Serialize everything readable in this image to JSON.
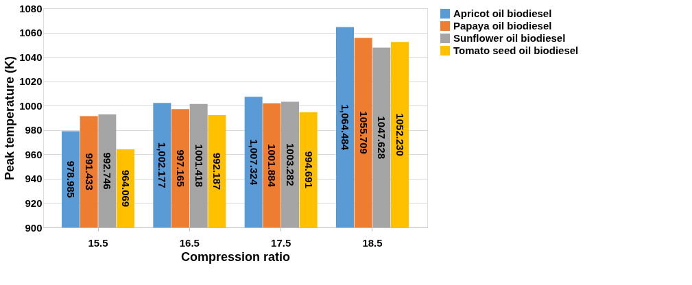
{
  "chart_data": {
    "type": "bar",
    "xlabel": "Compression  ratio",
    "ylabel": "Peak temperature (K)",
    "categories": [
      "15.5",
      "16.5",
      "17.5",
      "18.5"
    ],
    "series": [
      {
        "name": "Apricot oil  biodiesel",
        "color": "#5b9bd5",
        "values": [
          978.985,
          1002.177,
          1007.324,
          1064.484
        ],
        "value_labels": [
          "978.985",
          "1,002.177",
          "1,007.324",
          "1,064.484"
        ]
      },
      {
        "name": "Papaya oil biodiesel",
        "color": "#ed7d31",
        "values": [
          991.433,
          997.165,
          1001.884,
          1055.709
        ],
        "value_labels": [
          "991.433",
          "997.165",
          "1001.884",
          "1055.709"
        ]
      },
      {
        "name": "Sunflower oil  biodiesel",
        "color": "#a5a5a5",
        "values": [
          992.746,
          1001.418,
          1003.282,
          1047.628
        ],
        "value_labels": [
          "992.746",
          "1001.418",
          "1003.282",
          "1047.628"
        ]
      },
      {
        "name": "Tomato seed oil biodiesel",
        "color": "#ffc000",
        "values": [
          964.069,
          992.187,
          994.691,
          1052.23
        ],
        "value_labels": [
          "964.069",
          "992.187",
          "994.691",
          "1052.230"
        ]
      }
    ],
    "ylim": [
      900,
      1080
    ],
    "yticks": [
      900,
      920,
      940,
      960,
      980,
      1000,
      1020,
      1040,
      1060,
      1080
    ],
    "grid": "y",
    "legend": "right"
  }
}
